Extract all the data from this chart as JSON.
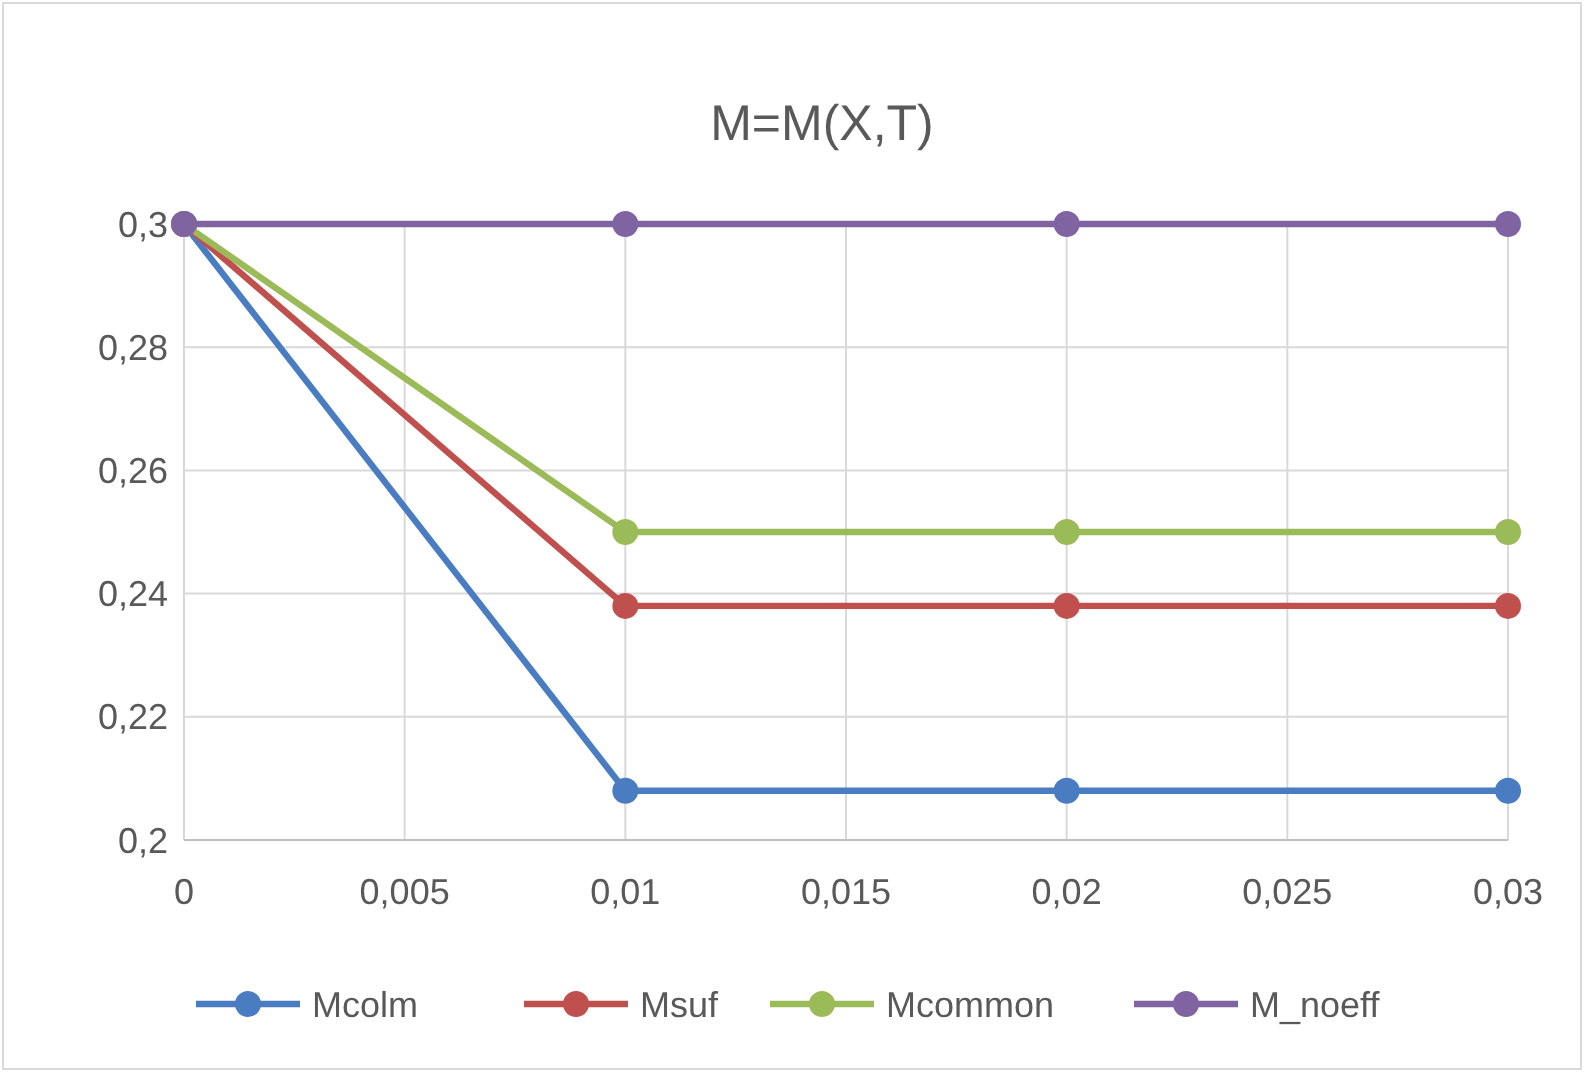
{
  "chart_data": {
    "type": "line",
    "title": "M=M(X,T)",
    "x": [
      0,
      0.01,
      0.02,
      0.03
    ],
    "series": [
      {
        "name": "Mcolm",
        "color": "#4a7cc1",
        "values": [
          0.3,
          0.208,
          0.208,
          0.208
        ]
      },
      {
        "name": "Msuf",
        "color": "#c0504d",
        "values": [
          0.3,
          0.238,
          0.238,
          0.238
        ]
      },
      {
        "name": "Mcommon",
        "color": "#9bbb59",
        "values": [
          0.3,
          0.25,
          0.25,
          0.25
        ]
      },
      {
        "name": "M_noeff",
        "color": "#8064a2",
        "values": [
          0.3,
          0.3,
          0.3,
          0.3
        ]
      }
    ],
    "xlim": [
      0,
      0.03
    ],
    "xticks": [
      0,
      {
        "value": 0.005,
        "label": "0,005"
      },
      {
        "value": 0.01,
        "label": "0,01"
      },
      {
        "value": 0.015,
        "label": "0,015"
      },
      {
        "value": 0.02,
        "label": "0,02"
      },
      {
        "value": 0.025,
        "label": "0,025"
      },
      {
        "value": 0.03,
        "label": "0,03"
      }
    ],
    "ylim": [
      0.2,
      0.3
    ],
    "yticks": [
      {
        "value": 0.2,
        "label": "0,2"
      },
      {
        "value": 0.22,
        "label": "0,22"
      },
      {
        "value": 0.24,
        "label": "0,24"
      },
      {
        "value": 0.26,
        "label": "0,26"
      },
      {
        "value": 0.28,
        "label": "0,28"
      },
      {
        "value": 0.3,
        "label": "0,3"
      }
    ],
    "grid": true,
    "legend": "bottom",
    "marker": "circle",
    "line_style": "solid"
  }
}
